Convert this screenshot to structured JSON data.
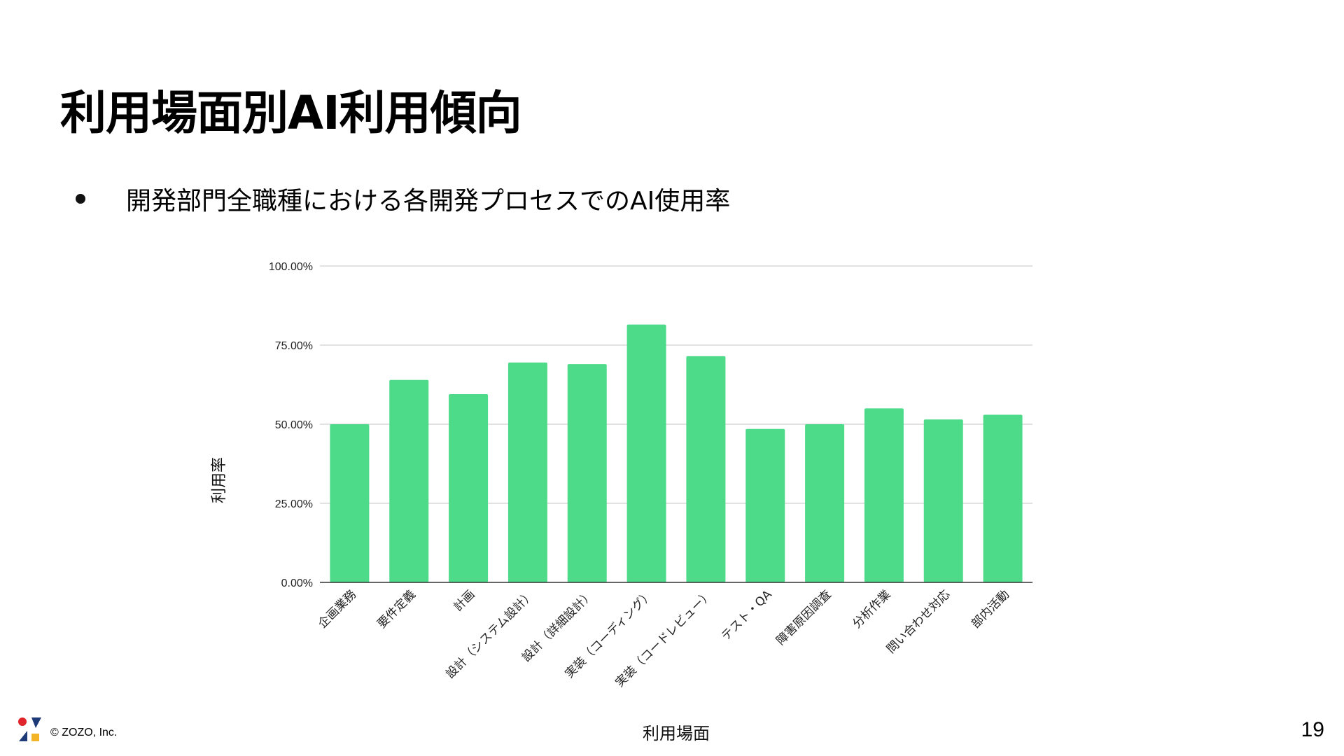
{
  "slide": {
    "title": "利用場面別AI利用傾向",
    "bullet": "開発部門全職種における各開発プロセスでのAI使用率",
    "copyright": "© ZOZO, Inc.",
    "page_number": "19"
  },
  "colors": {
    "bar": "#4ddb8a",
    "grid": "#d9d9d9",
    "axis": "#333333",
    "logo_red": "#e0242b",
    "logo_navy": "#1e3a78",
    "logo_yellow": "#f3b428"
  },
  "icons": {
    "logo": "zozo-logo-icon"
  },
  "chart_data": {
    "type": "bar",
    "title": "",
    "xlabel": "利用場面",
    "ylabel": "利用率",
    "ylim": [
      0,
      100
    ],
    "grid": true,
    "legend": "none",
    "y_ticks": [
      "0.00%",
      "25.00%",
      "50.00%",
      "75.00%",
      "100.00%"
    ],
    "categories": [
      "企画業務",
      "要件定義",
      "計画",
      "設計（システム設計）",
      "設計（詳細設計）",
      "実装（コーディング）",
      "実装（コードレビュー）",
      "テスト・QA",
      "障害原因調査",
      "分析作業",
      "問い合わせ対応",
      "部内活動"
    ],
    "values": [
      50,
      64,
      59.5,
      69.5,
      69,
      81.5,
      71.5,
      48.5,
      50,
      55,
      51.5,
      53
    ]
  }
}
